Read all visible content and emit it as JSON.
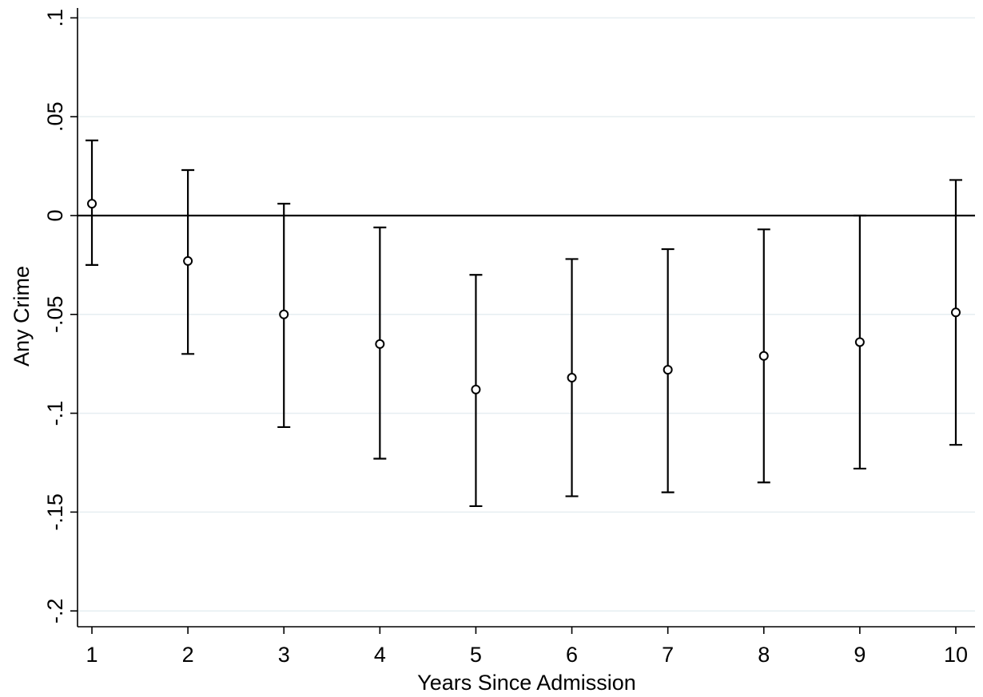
{
  "chart_data": {
    "type": "scatter",
    "title": "",
    "xlabel": "Years Since Admission",
    "ylabel": "Any Crime",
    "xlim": [
      0.85,
      10.2
    ],
    "ylim": [
      -0.208,
      0.105
    ],
    "xticks": [
      1,
      2,
      3,
      4,
      5,
      6,
      7,
      8,
      9,
      10
    ],
    "xtick_labels": [
      "1",
      "2",
      "3",
      "4",
      "5",
      "6",
      "7",
      "8",
      "9",
      "10"
    ],
    "yticks": [
      0.1,
      0.05,
      0,
      -0.05,
      -0.1,
      -0.15,
      -0.2
    ],
    "ytick_labels": [
      ".1",
      ".05",
      "0",
      "-.05",
      "-.1",
      "-.15",
      "-.2"
    ],
    "grid": true,
    "reference_line_y": 0,
    "points": [
      {
        "x": 1,
        "y": 0.006,
        "lo": -0.025,
        "hi": 0.038
      },
      {
        "x": 2,
        "y": -0.023,
        "lo": -0.07,
        "hi": 0.023
      },
      {
        "x": 3,
        "y": -0.05,
        "lo": -0.107,
        "hi": 0.006
      },
      {
        "x": 4,
        "y": -0.065,
        "lo": -0.123,
        "hi": -0.006
      },
      {
        "x": 5,
        "y": -0.088,
        "lo": -0.147,
        "hi": -0.03
      },
      {
        "x": 6,
        "y": -0.082,
        "lo": -0.142,
        "hi": -0.022
      },
      {
        "x": 7,
        "y": -0.078,
        "lo": -0.14,
        "hi": -0.017
      },
      {
        "x": 8,
        "y": -0.071,
        "lo": -0.135,
        "hi": -0.007
      },
      {
        "x": 9,
        "y": -0.064,
        "lo": -0.128,
        "hi": 0.0
      },
      {
        "x": 10,
        "y": -0.049,
        "lo": -0.116,
        "hi": 0.018
      }
    ]
  }
}
